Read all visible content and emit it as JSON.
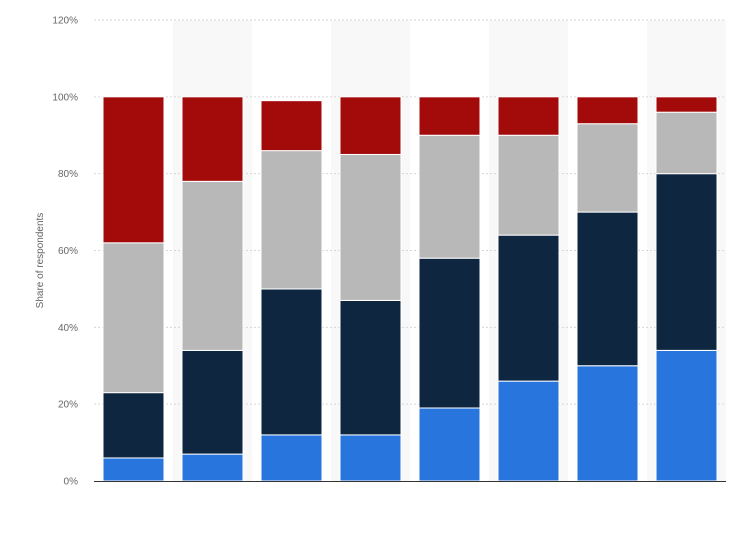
{
  "chart_data": {
    "type": "bar",
    "stacked": true,
    "categories": [
      "",
      "",
      "",
      "",
      "",
      "",
      "",
      ""
    ],
    "series": [
      {
        "values": [
          6,
          7,
          12,
          12,
          19,
          26,
          30,
          34
        ],
        "color": "#2876dd"
      },
      {
        "values": [
          17,
          27,
          38,
          35,
          39,
          38,
          40,
          46
        ],
        "color": "#0f2640"
      },
      {
        "values": [
          39,
          44,
          36,
          38,
          32,
          26,
          23,
          16
        ],
        "color": "#b8b8b8"
      },
      {
        "values": [
          38,
          22,
          13,
          15,
          10,
          10,
          7,
          4
        ],
        "color": "#a30b0b"
      }
    ],
    "title": "",
    "xlabel": "",
    "ylabel": "Share of respondents",
    "ylim": [
      0,
      120
    ],
    "yticks": [
      0,
      20,
      40,
      60,
      80,
      100,
      120
    ],
    "ytick_labels": [
      "0%",
      "20%",
      "40%",
      "60%",
      "80%",
      "100%",
      "120%"
    ],
    "grid": true,
    "legend": "none",
    "colors": {
      "gridline": "#d6d6d6",
      "baseline": "#333333",
      "band": "#f8f8f8",
      "bar_edge": "#ffffff",
      "tick_text": "#666666"
    }
  }
}
